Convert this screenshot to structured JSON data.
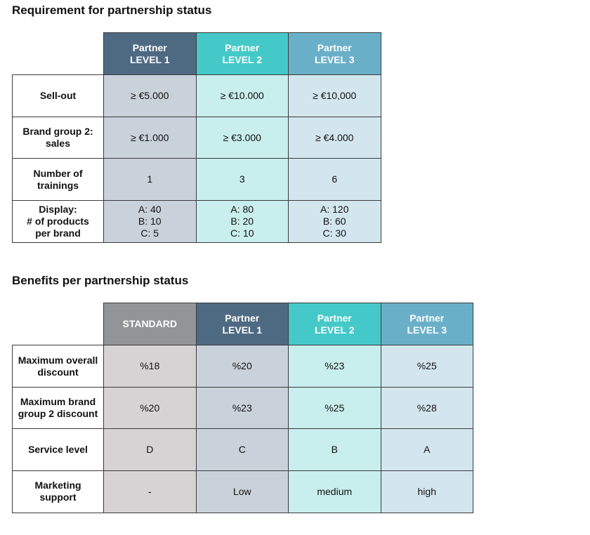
{
  "tables": [
    {
      "title": "Requirement for partnership status",
      "columns": [
        "Partner\nLEVEL 1",
        "Partner\nLEVEL 2",
        "Partner\nLEVEL 3"
      ],
      "rows": [
        {
          "label": "Sell-out",
          "cells": [
            "≥ €5.000",
            "≥ €10.000",
            "≥ €10,000"
          ]
        },
        {
          "label": "Brand group 2:\nsales",
          "cells": [
            "≥ €1.000",
            "≥ €3.000",
            "≥ €4.000"
          ]
        },
        {
          "label": "Number of\ntrainings",
          "cells": [
            "1",
            "3",
            "6"
          ]
        },
        {
          "label": "Display:\n# of products\nper brand",
          "cells": [
            "A: 40\nB: 10\nC:  5",
            "A: 80\nB: 20\nC: 10",
            "A: 120\nB:  60\nC:  30"
          ]
        }
      ]
    },
    {
      "title": "Benefits per partnership status",
      "columns": [
        "STANDARD",
        "Partner\nLEVEL 1",
        "Partner\nLEVEL 2",
        "Partner\nLEVEL 3"
      ],
      "rows": [
        {
          "label": "Maximum overall\ndiscount",
          "cells": [
            "%18",
            "%20",
            "%23",
            "%25"
          ]
        },
        {
          "label": "Maximum brand\ngroup 2 discount",
          "cells": [
            "%20",
            "%23",
            "%25",
            "%28"
          ]
        },
        {
          "label": "Service level",
          "cells": [
            "D",
            "C",
            "B",
            "A"
          ]
        },
        {
          "label": "Marketing\nsupport",
          "cells": [
            "-",
            "Low",
            "medium",
            "high"
          ]
        }
      ]
    }
  ]
}
